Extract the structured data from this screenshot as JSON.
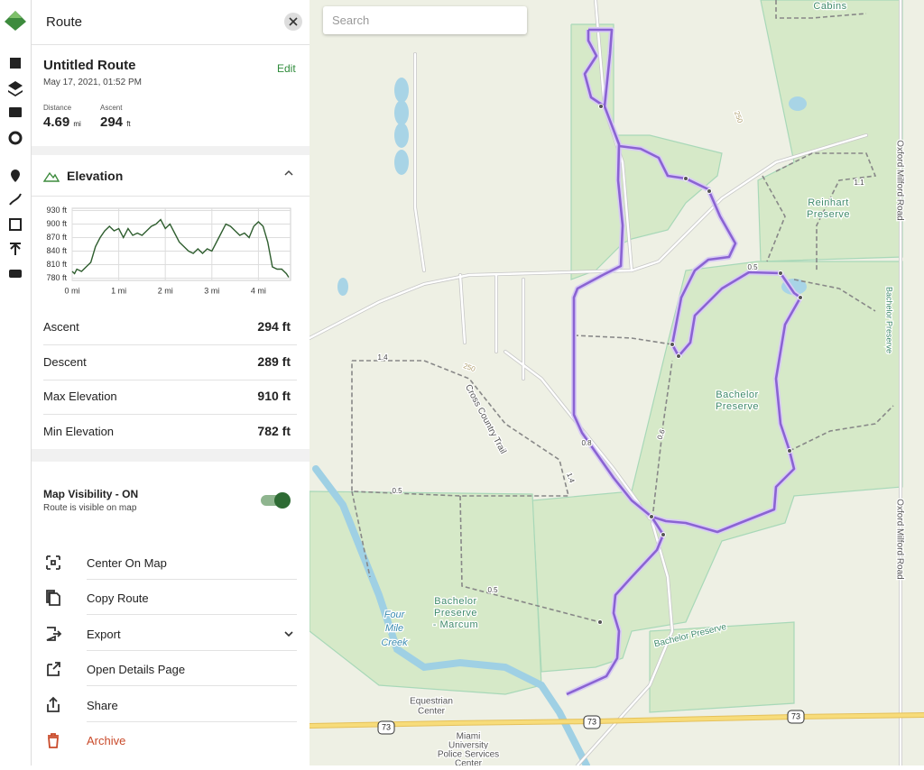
{
  "header": {
    "title": "Route"
  },
  "route": {
    "name": "Untitled Route",
    "edit": "Edit",
    "date": "May 17, 2021, 01:52 PM",
    "distance": {
      "label": "Distance",
      "value": "4.69",
      "unit": "mi"
    },
    "ascent": {
      "label": "Ascent",
      "value": "294",
      "unit": "ft"
    }
  },
  "elevation": {
    "title": "Elevation",
    "stats": [
      {
        "label": "Ascent",
        "value": "294 ft"
      },
      {
        "label": "Descent",
        "value": "289 ft"
      },
      {
        "label": "Max Elevation",
        "value": "910 ft"
      },
      {
        "label": "Min Elevation",
        "value": "782 ft"
      }
    ]
  },
  "chart_data": {
    "type": "line",
    "x": [
      0,
      0.05,
      0.1,
      0.2,
      0.3,
      0.4,
      0.5,
      0.6,
      0.7,
      0.8,
      0.9,
      1.0,
      1.1,
      1.2,
      1.3,
      1.4,
      1.5,
      1.6,
      1.7,
      1.8,
      1.9,
      2.0,
      2.1,
      2.2,
      2.3,
      2.4,
      2.5,
      2.6,
      2.7,
      2.8,
      2.9,
      3.0,
      3.1,
      3.2,
      3.3,
      3.4,
      3.5,
      3.6,
      3.7,
      3.8,
      3.9,
      4.0,
      4.1,
      4.2,
      4.3,
      4.4,
      4.5,
      4.6,
      4.65
    ],
    "values": [
      795,
      790,
      800,
      795,
      805,
      815,
      850,
      870,
      885,
      895,
      885,
      890,
      870,
      890,
      875,
      880,
      875,
      885,
      895,
      900,
      910,
      890,
      900,
      880,
      860,
      850,
      840,
      835,
      845,
      835,
      845,
      840,
      860,
      880,
      900,
      895,
      885,
      875,
      880,
      870,
      895,
      905,
      895,
      860,
      805,
      800,
      800,
      790,
      782
    ],
    "color": "#2f5e2f",
    "xlim": [
      0,
      4.69
    ],
    "ylim": [
      775,
      935
    ],
    "xticks": [
      {
        "value": 0,
        "label": "0 mi"
      },
      {
        "value": 1,
        "label": "1 mi"
      },
      {
        "value": 2,
        "label": "2 mi"
      },
      {
        "value": 3,
        "label": "3 mi"
      },
      {
        "value": 4,
        "label": "4 mi"
      }
    ],
    "yticks": [
      {
        "value": 780,
        "label": "780 ft"
      },
      {
        "value": 810,
        "label": "810 ft"
      },
      {
        "value": 840,
        "label": "840 ft"
      },
      {
        "value": 870,
        "label": "870 ft"
      },
      {
        "value": 900,
        "label": "900 ft"
      },
      {
        "value": 930,
        "label": "930 ft"
      }
    ],
    "grid": true
  },
  "visibility": {
    "title": "Map Visibility - ON",
    "subtitle": "Route is visible on map"
  },
  "actions": [
    "Center On Map",
    "Copy Route",
    "Export",
    "Open Details Page",
    "Share",
    "Archive"
  ],
  "map": {
    "search": "Search",
    "labels": [
      "Cabins",
      "Reinhart",
      "Preserve",
      "Bachelor",
      "Preserve",
      "Oxford Milford Road",
      "Oxford Milford Road",
      "Bachelor Preserve",
      "Cross Country Trail",
      "Bachelor",
      "Preserve",
      "- Marcum",
      "Four",
      "Mile",
      "Creek",
      "Bachelor Preserve",
      "Equestrian",
      "Center",
      "Miami",
      "University",
      "Police Services",
      "Center",
      "73",
      "73",
      "73",
      "1.4",
      "0.5",
      "0.8",
      "0.6",
      "0.5",
      "0.5",
      "1.1",
      "1.4",
      "250",
      "250"
    ]
  }
}
